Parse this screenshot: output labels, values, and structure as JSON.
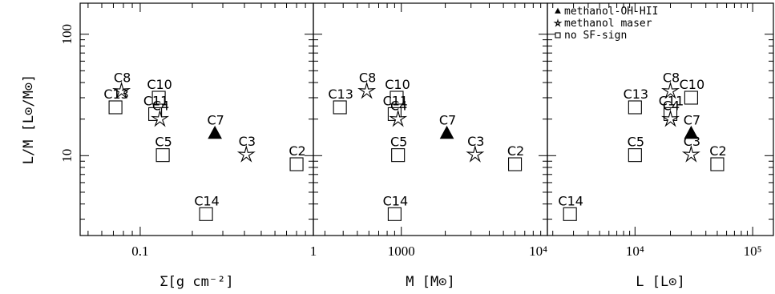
{
  "chart_data": [
    {
      "type": "scatter",
      "xlabel": "Σ[g cm⁻²]",
      "ylabel": "L/M [L⊙/M⊙]",
      "xscale": "log",
      "yscale": "log",
      "xlim": [
        0.045,
        1.0
      ],
      "ylim": [
        2.2,
        180
      ],
      "x_ticks": [
        {
          "value": 0.1,
          "label": "0.1"
        },
        {
          "value": 1,
          "label": "1"
        }
      ],
      "y_ticks": [
        {
          "value": 10,
          "label": "10"
        },
        {
          "value": 100,
          "label": "100"
        }
      ],
      "points": [
        {
          "label": "C8",
          "x": 0.078,
          "y": 34,
          "marker": "star"
        },
        {
          "label": "C13",
          "x": 0.072,
          "y": 25,
          "marker": "square"
        },
        {
          "label": "C10",
          "x": 0.128,
          "y": 30,
          "marker": "square"
        },
        {
          "label": "C11",
          "x": 0.122,
          "y": 22,
          "marker": "square"
        },
        {
          "label": "C4",
          "x": 0.13,
          "y": 20,
          "marker": "star"
        },
        {
          "label": "C7",
          "x": 0.27,
          "y": 15.2,
          "marker": "triangle"
        },
        {
          "label": "C3",
          "x": 0.41,
          "y": 10.2,
          "marker": "star"
        },
        {
          "label": "C5",
          "x": 0.135,
          "y": 10.1,
          "marker": "square"
        },
        {
          "label": "C2",
          "x": 0.8,
          "y": 8.5,
          "marker": "square"
        },
        {
          "label": "C14",
          "x": 0.24,
          "y": 3.3,
          "marker": "square"
        }
      ]
    },
    {
      "type": "scatter",
      "xlabel": "M [M⊙]",
      "xscale": "log",
      "yscale": "log",
      "xlim": [
        250,
        10000
      ],
      "ylim": [
        2.2,
        180
      ],
      "x_ticks": [
        {
          "value": 1000,
          "label": "1000"
        },
        {
          "value": 10000,
          "label": "10⁴"
        }
      ],
      "points": [
        {
          "label": "C8",
          "x": 580,
          "y": 34,
          "marker": "star"
        },
        {
          "label": "C13",
          "x": 380,
          "y": 25,
          "marker": "square"
        },
        {
          "label": "C10",
          "x": 930,
          "y": 30,
          "marker": "square"
        },
        {
          "label": "C11",
          "x": 900,
          "y": 22,
          "marker": "square"
        },
        {
          "label": "C4",
          "x": 950,
          "y": 20,
          "marker": "star"
        },
        {
          "label": "C7",
          "x": 2050,
          "y": 15.2,
          "marker": "triangle"
        },
        {
          "label": "C3",
          "x": 3200,
          "y": 10.2,
          "marker": "star"
        },
        {
          "label": "C5",
          "x": 950,
          "y": 10.1,
          "marker": "square"
        },
        {
          "label": "C2",
          "x": 6000,
          "y": 8.5,
          "marker": "square"
        },
        {
          "label": "C14",
          "x": 900,
          "y": 3.3,
          "marker": "square"
        }
      ]
    },
    {
      "type": "scatter",
      "xlabel": "L [L⊙]",
      "xscale": "log",
      "yscale": "log",
      "xlim": [
        1800,
        150000
      ],
      "ylim": [
        2.2,
        180
      ],
      "x_ticks": [
        {
          "value": 10000,
          "label": "10⁴"
        },
        {
          "value": 100000,
          "label": "10⁵"
        }
      ],
      "points": [
        {
          "label": "C8",
          "x": 20000,
          "y": 34,
          "marker": "star"
        },
        {
          "label": "C13",
          "x": 10000,
          "y": 25,
          "marker": "square"
        },
        {
          "label": "C10",
          "x": 30000,
          "y": 30,
          "marker": "square"
        },
        {
          "label": "C11",
          "x": 20000,
          "y": 22,
          "marker": "square"
        },
        {
          "label": "C4",
          "x": 20000,
          "y": 20,
          "marker": "star"
        },
        {
          "label": "C7",
          "x": 30000,
          "y": 15.2,
          "marker": "triangle"
        },
        {
          "label": "C3",
          "x": 30000,
          "y": 10.2,
          "marker": "star"
        },
        {
          "label": "C5",
          "x": 10000,
          "y": 10.1,
          "marker": "square"
        },
        {
          "label": "C2",
          "x": 50000,
          "y": 8.5,
          "marker": "square"
        },
        {
          "label": "C14",
          "x": 2800,
          "y": 3.3,
          "marker": "square"
        }
      ],
      "legend": {
        "placement": "top-left",
        "entries": [
          {
            "marker": "triangle",
            "label": "methanol-OH-HII"
          },
          {
            "marker": "star",
            "label": "methanol maser"
          },
          {
            "marker": "square",
            "label": "no SF-sign"
          }
        ]
      }
    }
  ]
}
